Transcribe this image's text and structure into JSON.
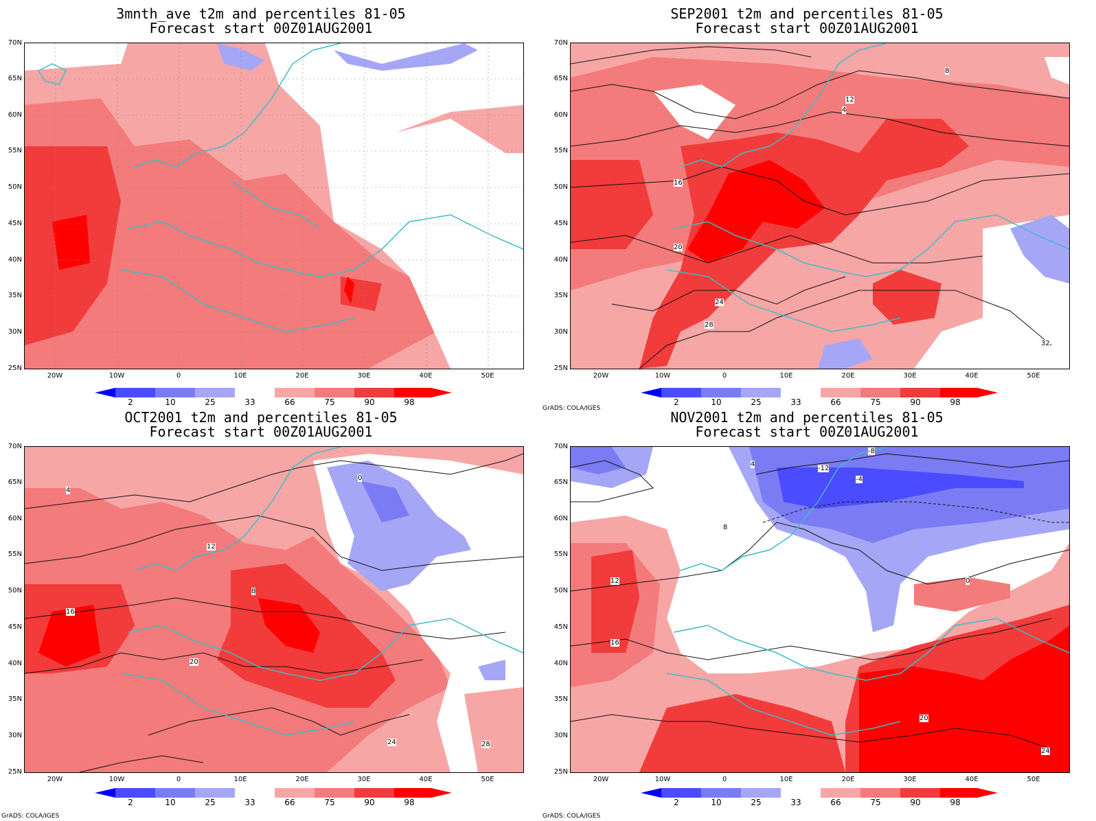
{
  "panels": [
    {
      "title": "3mnth_ave t2m and percentiles 81-05",
      "subtitle": "Forecast start 00Z01AUG2001"
    },
    {
      "title": "SEP2001 t2m and percentiles 81-05",
      "subtitle": "Forecast start 00Z01AUG2001"
    },
    {
      "title": "OCT2001 t2m and percentiles 81-05",
      "subtitle": "Forecast start 00Z01AUG2001"
    },
    {
      "title": "NOV2001 t2m and percentiles 81-05",
      "subtitle": "Forecast start 00Z01AUG2001"
    }
  ],
  "lat_labels": [
    "70N",
    "65N",
    "60N",
    "55N",
    "50N",
    "45N",
    "40N",
    "35N",
    "30N",
    "25N"
  ],
  "lon_labels": [
    "20W",
    "10W",
    "0",
    "10E",
    "20E",
    "30E",
    "40E",
    "50E"
  ],
  "colorbar": {
    "labels": [
      "2",
      "10",
      "25",
      "33",
      "66",
      "75",
      "90",
      "98"
    ],
    "colors": [
      "#0000ff",
      "#4b4bff",
      "#7b7bf4",
      "#a6a6f7",
      "#ffffff",
      "#f7a6a6",
      "#f47b7b",
      "#f23b3b",
      "#ff0000"
    ]
  },
  "credit": "GrADS: COLA/IGES",
  "contour_labels": {
    "sep": [
      "4",
      "8",
      "12",
      "16",
      "20",
      "24",
      "28",
      "32"
    ],
    "oct": [
      "0",
      "4",
      "8",
      "12",
      "16",
      "20",
      "24",
      "28"
    ],
    "nov": [
      "-8",
      "-12",
      "-4",
      "0",
      "4",
      "8",
      "12",
      "16",
      "20",
      "24"
    ]
  }
}
